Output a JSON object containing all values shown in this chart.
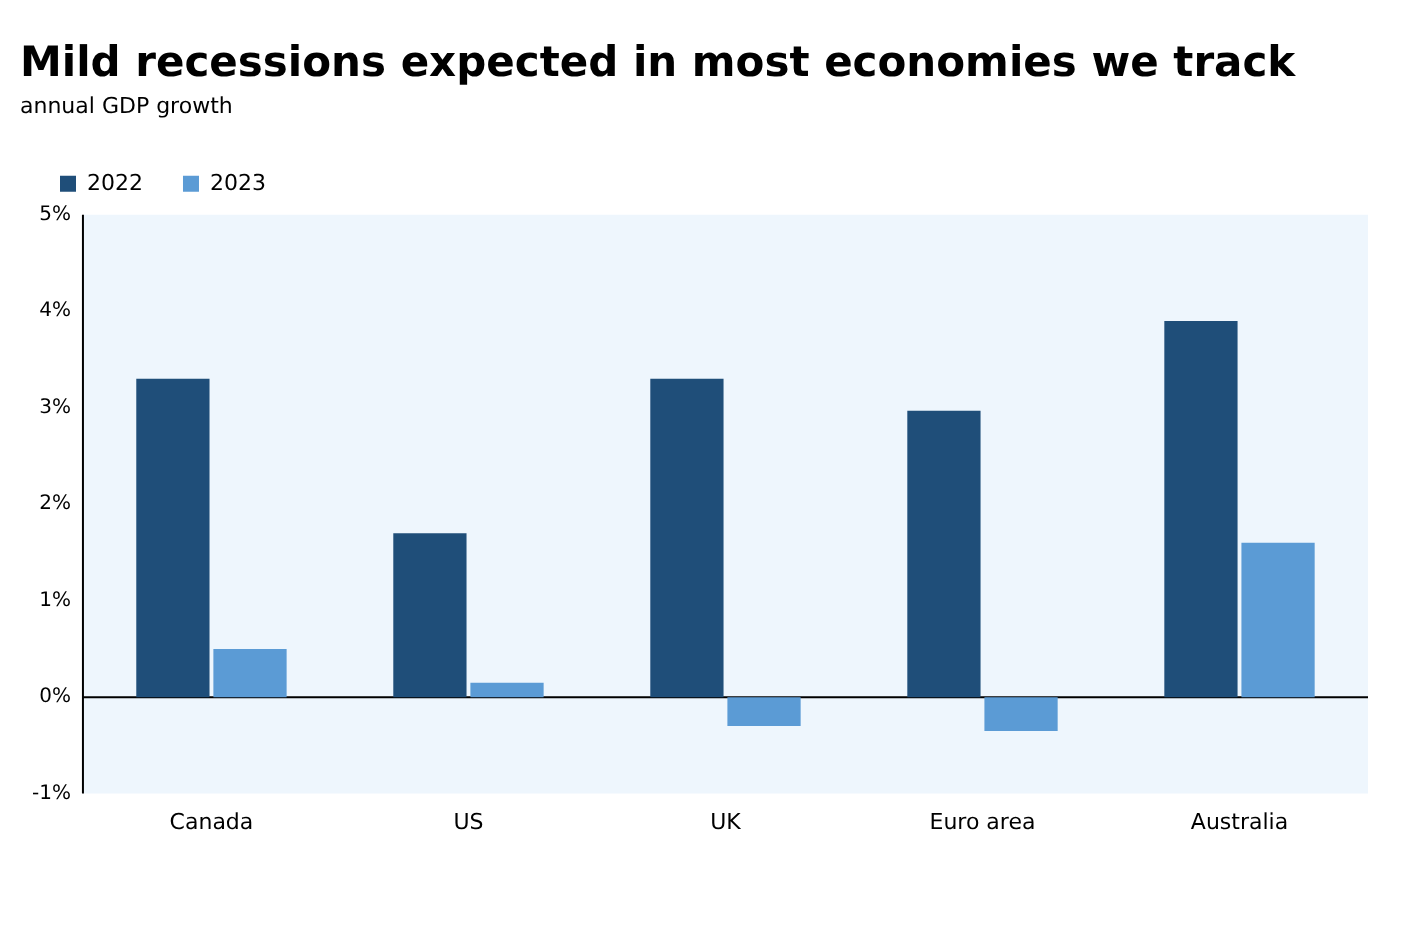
{
  "chart_data": {
    "type": "bar",
    "title": "Mild recessions expected in most economies we track",
    "subtitle": "annual GDP growth",
    "categories": [
      "Canada",
      "US",
      "UK",
      "Euro area",
      "Australia"
    ],
    "series": [
      {
        "name": "2022",
        "color": "#1f4e79",
        "values": [
          3.3,
          1.7,
          3.3,
          2.97,
          3.9
        ]
      },
      {
        "name": "2023",
        "color": "#5b9bd5",
        "values": [
          0.5,
          0.15,
          -0.3,
          -0.35,
          1.6
        ]
      }
    ],
    "ylim": [
      -1,
      5
    ],
    "yticks": [
      {
        "value": -1,
        "label": "-1%"
      },
      {
        "value": 0,
        "label": "0%"
      },
      {
        "value": 1,
        "label": "1%"
      },
      {
        "value": 2,
        "label": "2%"
      },
      {
        "value": 3,
        "label": "3%"
      },
      {
        "value": 4,
        "label": "4%"
      },
      {
        "value": 5,
        "label": "5%"
      }
    ],
    "ref_lines": [
      {
        "axis": "y",
        "value": 0,
        "color": "#000000"
      }
    ],
    "grid": false,
    "legend": "top left"
  }
}
